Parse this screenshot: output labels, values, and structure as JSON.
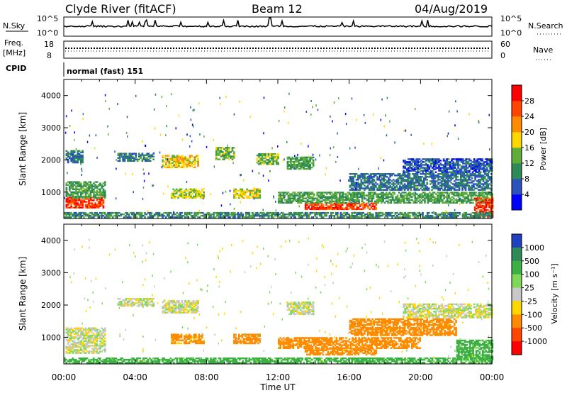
{
  "header": {
    "station": "Clyde River (fitACF)",
    "beam": "Beam 12",
    "date": "04/Aug/2019"
  },
  "aux_panels": {
    "nsky": {
      "label": "N.Sky",
      "tick_top": "10^5",
      "tick_bottom": "10^0",
      "right_label": "N.Search",
      "right_top": "10^5",
      "right_bottom": "10^0"
    },
    "freq": {
      "label_top": "Freq.",
      "label_unit": "[MHz]",
      "tick_top": "18",
      "tick_bottom": "8",
      "right_label": "Nave",
      "right_top": "60",
      "right_bottom": "0"
    },
    "cpid": {
      "label": "CPID",
      "value": "normal (fast) 151"
    }
  },
  "chart_data": [
    {
      "type": "heatmap",
      "name": "power",
      "ylabel": "Slant Range [km]",
      "xlabel": "",
      "x_range": [
        0,
        24
      ],
      "ylim": [
        180,
        4500
      ],
      "yticks": [
        1000,
        2000,
        3000,
        4000
      ],
      "colorbar": {
        "label": "Power [dB]",
        "ticks": [
          "28",
          "24",
          "20",
          "16",
          "12",
          "8",
          "4"
        ],
        "range": [
          0,
          32
        ],
        "colors": [
          "#0000ff",
          "#2a52be",
          "#2e8b57",
          "#5fae3a",
          "#ffd700",
          "#ff8c00",
          "#ff4500",
          "#ff0000"
        ]
      },
      "regions": [
        {
          "t0": 0.1,
          "t1": 2.2,
          "r0": 500,
          "r1": 850,
          "value": 27
        },
        {
          "t0": 0.1,
          "t1": 2.3,
          "r0": 800,
          "r1": 1300,
          "value": 12
        },
        {
          "t0": 0.1,
          "t1": 1.0,
          "r0": 1900,
          "r1": 2300,
          "value": 8
        },
        {
          "t0": 3.0,
          "t1": 5.0,
          "r0": 1950,
          "r1": 2200,
          "value": 9
        },
        {
          "t0": 5.5,
          "t1": 7.5,
          "r0": 1750,
          "r1": 2150,
          "value": 18
        },
        {
          "t0": 6.0,
          "t1": 7.8,
          "r0": 800,
          "r1": 1100,
          "value": 16
        },
        {
          "t0": 8.5,
          "t1": 9.5,
          "r0": 2000,
          "r1": 2400,
          "value": 14
        },
        {
          "t0": 9.5,
          "t1": 11.0,
          "r0": 800,
          "r1": 1100,
          "value": 17
        },
        {
          "t0": 10.8,
          "t1": 12.0,
          "r0": 1850,
          "r1": 2200,
          "value": 14
        },
        {
          "t0": 12.5,
          "t1": 14.0,
          "r0": 1700,
          "r1": 2100,
          "value": 12
        },
        {
          "t0": 13.5,
          "t1": 17.5,
          "r0": 450,
          "r1": 650,
          "value": 27
        },
        {
          "t0": 12.0,
          "t1": 24.0,
          "r0": 650,
          "r1": 1000,
          "value": 12
        },
        {
          "t0": 16.0,
          "t1": 24.0,
          "r0": 1050,
          "r1": 1550,
          "value": 8
        },
        {
          "t0": 19.0,
          "t1": 24.0,
          "r0": 1600,
          "r1": 2050,
          "value": 6
        },
        {
          "t0": 23.0,
          "t1": 24.0,
          "r0": 200,
          "r1": 800,
          "value": 27
        },
        {
          "t0": 0.0,
          "t1": 24.0,
          "r0": 200,
          "r1": 350,
          "value": 10
        }
      ]
    },
    {
      "type": "heatmap",
      "name": "velocity",
      "ylabel": "Slant Range [km]",
      "xlabel": "Time UT",
      "x_range": [
        0,
        24
      ],
      "ylim": [
        180,
        4500
      ],
      "yticks": [
        1000,
        2000,
        3000,
        4000
      ],
      "xticks": [
        "00:00",
        "04:00",
        "08:00",
        "12:00",
        "16:00",
        "20:00",
        "00:00"
      ],
      "colorbar": {
        "label": "Velocity [m s⁻¹]",
        "ticks": [
          "1000",
          "500",
          "100",
          "25",
          "-25",
          "-100",
          "-500",
          "-1000"
        ],
        "colors": [
          "#2040c0",
          "#2e8b57",
          "#3cb043",
          "#7ed957",
          "#c8c8c8",
          "#ffd700",
          "#ff8c00",
          "#ff4500",
          "#ff0000"
        ]
      },
      "regions": [
        {
          "t0": 0.1,
          "t1": 2.3,
          "r0": 500,
          "r1": 1300,
          "value": 0
        },
        {
          "t0": 3.0,
          "t1": 5.0,
          "r0": 1950,
          "r1": 2200,
          "value": 0
        },
        {
          "t0": 5.5,
          "t1": 7.5,
          "r0": 1750,
          "r1": 2150,
          "value": 0
        },
        {
          "t0": 6.0,
          "t1": 7.8,
          "r0": 800,
          "r1": 1100,
          "value": -150
        },
        {
          "t0": 9.5,
          "t1": 11.0,
          "r0": 800,
          "r1": 1100,
          "value": -300
        },
        {
          "t0": 12.5,
          "t1": 14.0,
          "r0": 1700,
          "r1": 2100,
          "value": 0
        },
        {
          "t0": 13.5,
          "t1": 17.5,
          "r0": 450,
          "r1": 650,
          "value": -300
        },
        {
          "t0": 12.0,
          "t1": 20.0,
          "r0": 650,
          "r1": 1000,
          "value": -300
        },
        {
          "t0": 16.0,
          "t1": 22.0,
          "r0": 1050,
          "r1": 1550,
          "value": -200
        },
        {
          "t0": 19.0,
          "t1": 24.0,
          "r0": 1600,
          "r1": 2050,
          "value": 0
        },
        {
          "t0": 22.0,
          "t1": 24.0,
          "r0": 300,
          "r1": 900,
          "value": 150
        },
        {
          "t0": 0.0,
          "t1": 24.0,
          "r0": 200,
          "r1": 350,
          "value": 150
        }
      ]
    }
  ]
}
